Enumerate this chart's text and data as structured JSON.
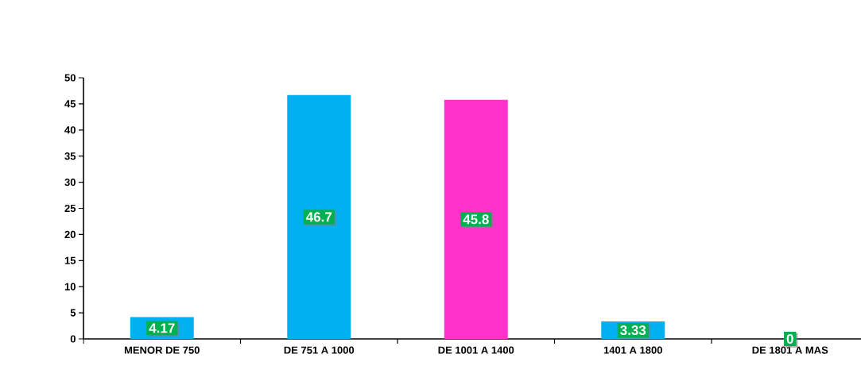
{
  "chart_data": {
    "type": "bar",
    "categories": [
      "MENOR  DE 750",
      "DE 751 A 1000",
      "DE 1001 A 1400",
      "1401 A 1800",
      "DE 1801 A MAS"
    ],
    "values": [
      4.17,
      46.7,
      45.8,
      3.33,
      0
    ],
    "colors": [
      "#00b0f0",
      "#00b0f0",
      "#ff33cc",
      "#00b0f0",
      "#00b0f0"
    ],
    "ylim": [
      0,
      50
    ],
    "yticks": [
      0,
      5,
      10,
      15,
      20,
      25,
      30,
      35,
      40,
      45,
      50
    ],
    "data_labels": true,
    "grid": false
  }
}
